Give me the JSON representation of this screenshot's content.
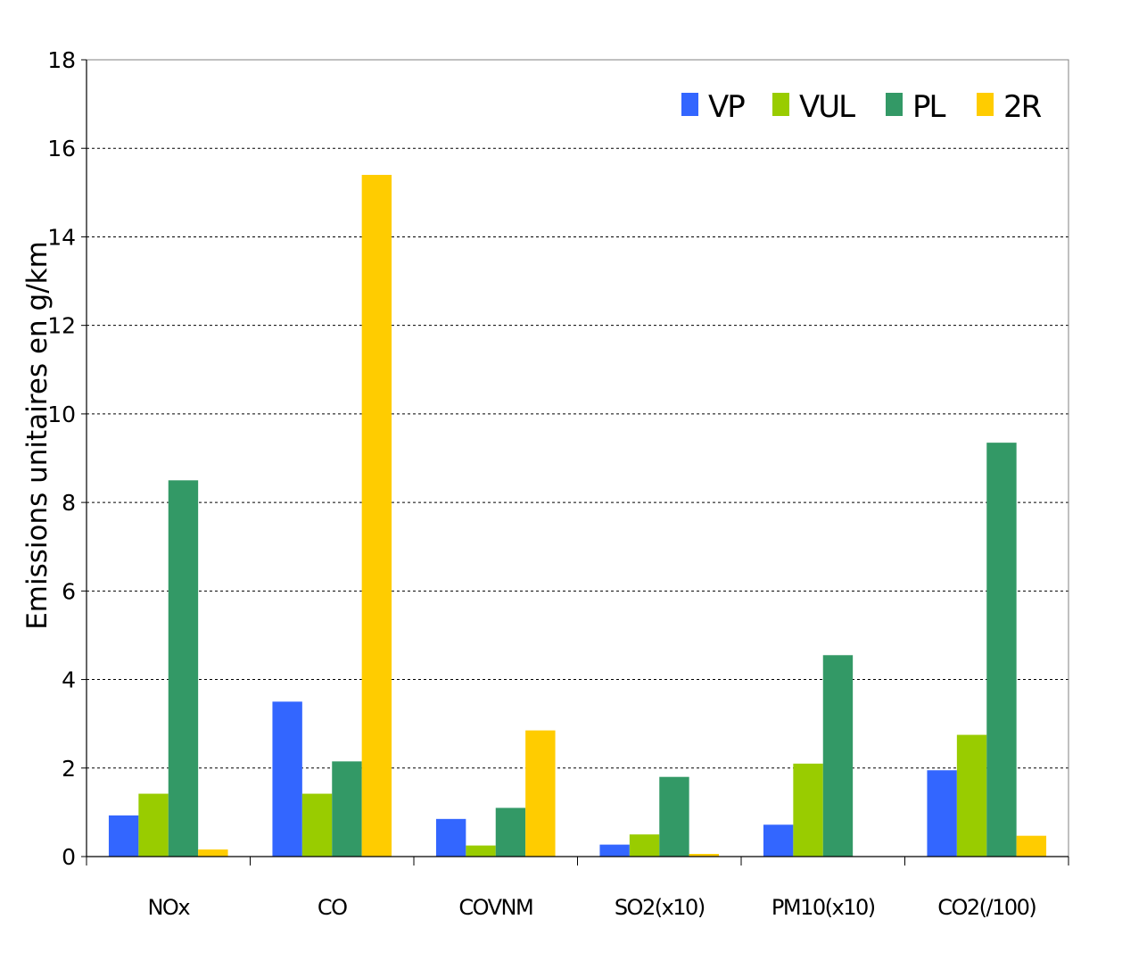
{
  "chart_data": {
    "type": "bar",
    "title": "",
    "xlabel": "",
    "ylabel": "Emissions unitaires en g/km",
    "ylim": [
      0,
      18
    ],
    "yticks": [
      "0",
      "2",
      "4",
      "6",
      "8",
      "10",
      "12",
      "14",
      "16",
      "18"
    ],
    "grid": true,
    "legend_position": "top-right",
    "categories": [
      "NOx",
      "CO",
      "COVNM",
      "SO2(x10)",
      "PM10(x10)",
      "CO2(/100)"
    ],
    "series": [
      {
        "name": "VP",
        "color": "#3366ff",
        "values": [
          0.93,
          3.5,
          0.85,
          0.27,
          0.72,
          1.95
        ]
      },
      {
        "name": "VUL",
        "color": "#99cc00",
        "values": [
          1.42,
          1.42,
          0.25,
          0.5,
          2.1,
          2.75
        ]
      },
      {
        "name": "PL",
        "color": "#339966",
        "values": [
          8.5,
          2.15,
          1.1,
          1.8,
          4.55,
          9.35
        ]
      },
      {
        "name": "2R",
        "color": "#ffcc00",
        "values": [
          0.16,
          15.4,
          2.85,
          0.06,
          0.0,
          0.47
        ]
      }
    ]
  }
}
